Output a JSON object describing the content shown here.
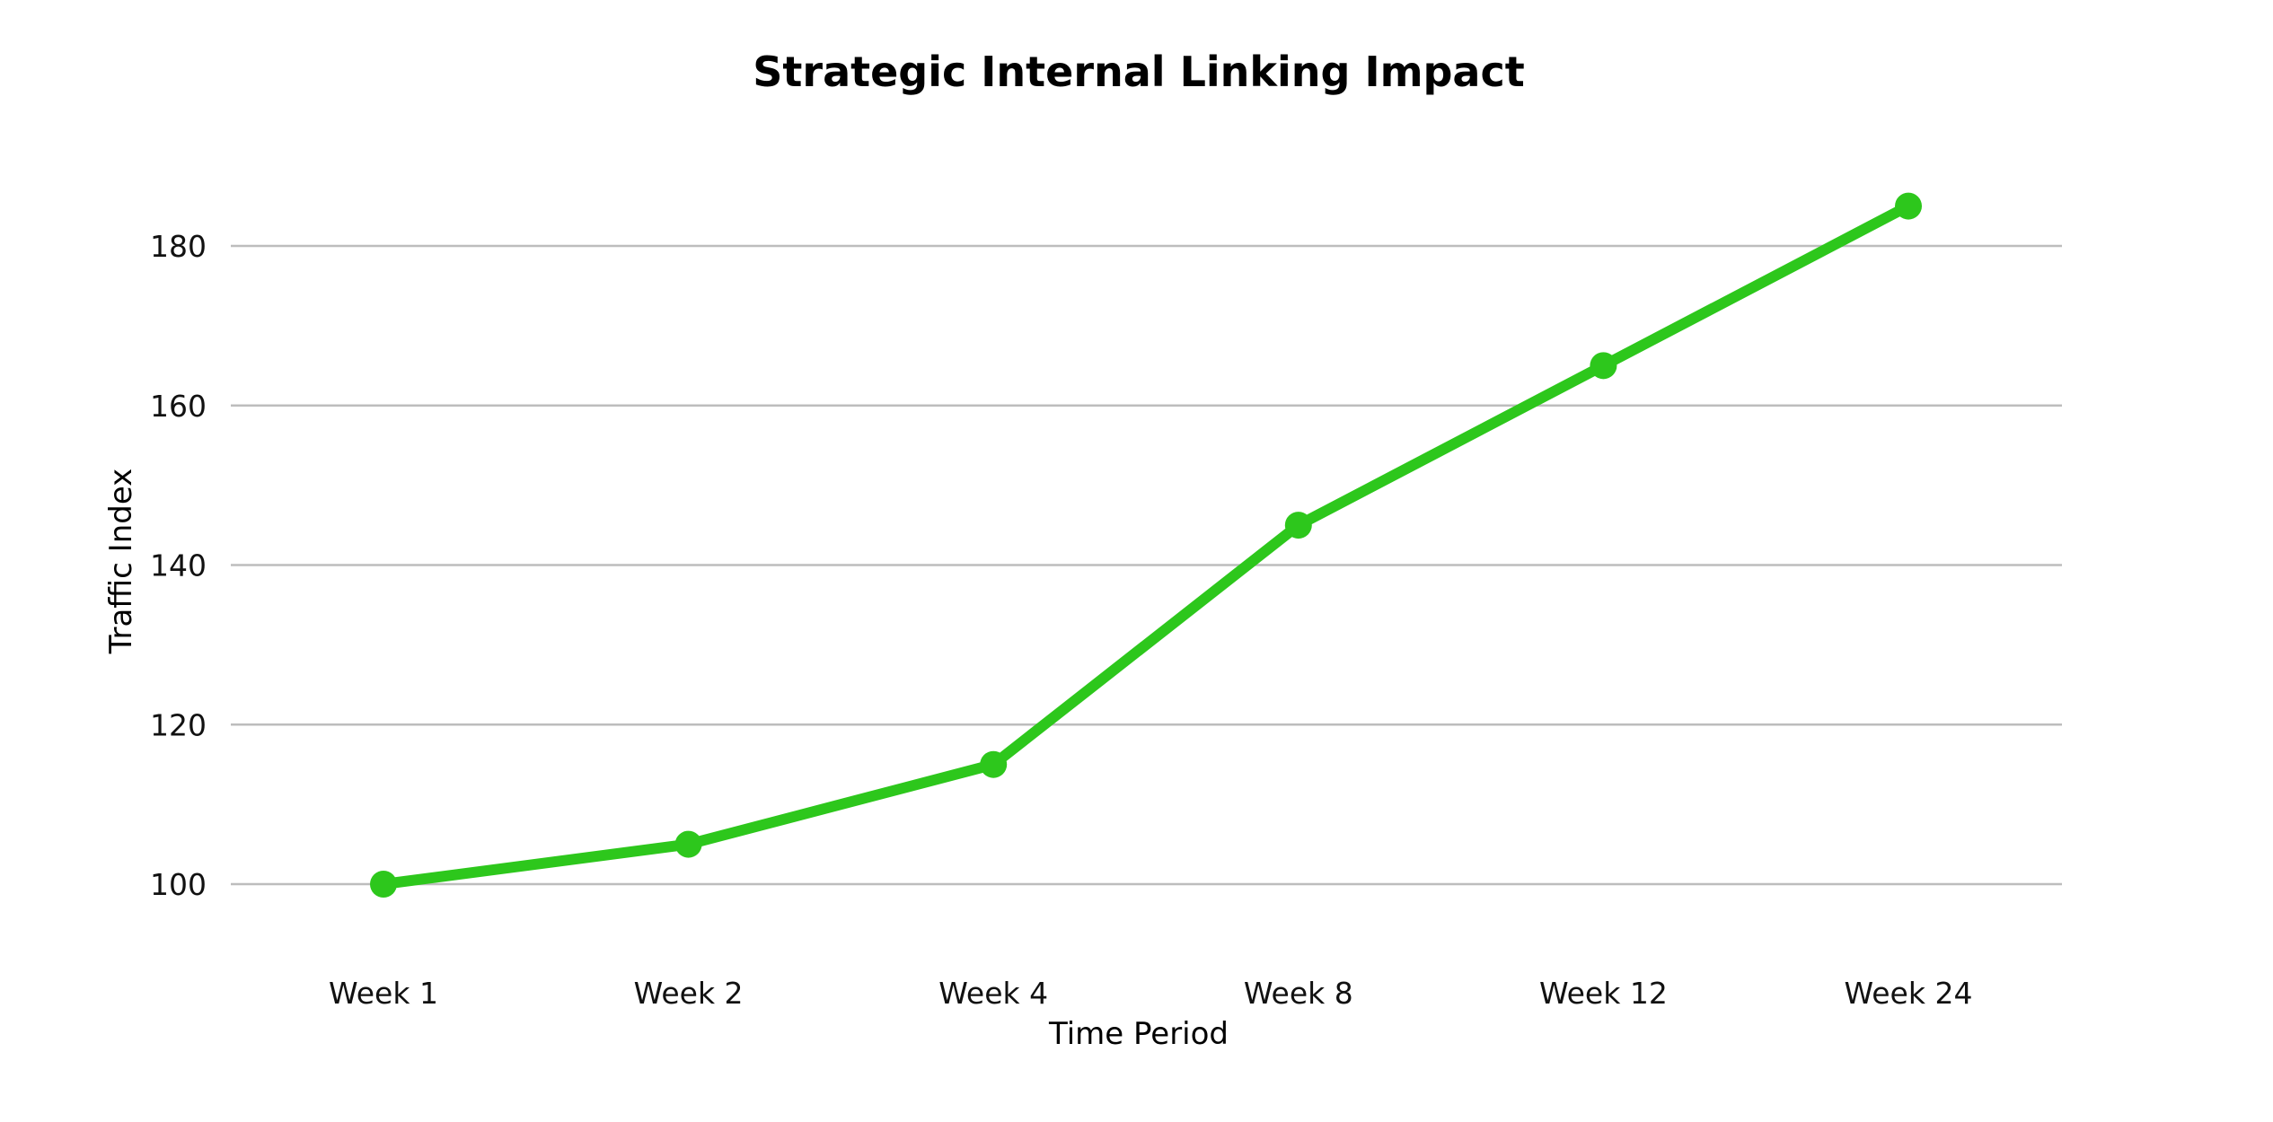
{
  "chart_data": {
    "type": "line",
    "title": "Strategic Internal Linking Impact",
    "xlabel": "Time Period",
    "ylabel": "Traffic Index",
    "categories": [
      "Week 1",
      "Week 2",
      "Week 4",
      "Week 8",
      "Week 12",
      "Week 24"
    ],
    "series": [
      {
        "values": [
          100,
          105,
          115,
          145,
          165,
          185
        ],
        "color": "#2dc71c"
      }
    ],
    "y_ticks": [
      100,
      120,
      140,
      160,
      180
    ],
    "ylim": [
      90,
      195
    ],
    "grid": true,
    "legend": "none"
  }
}
